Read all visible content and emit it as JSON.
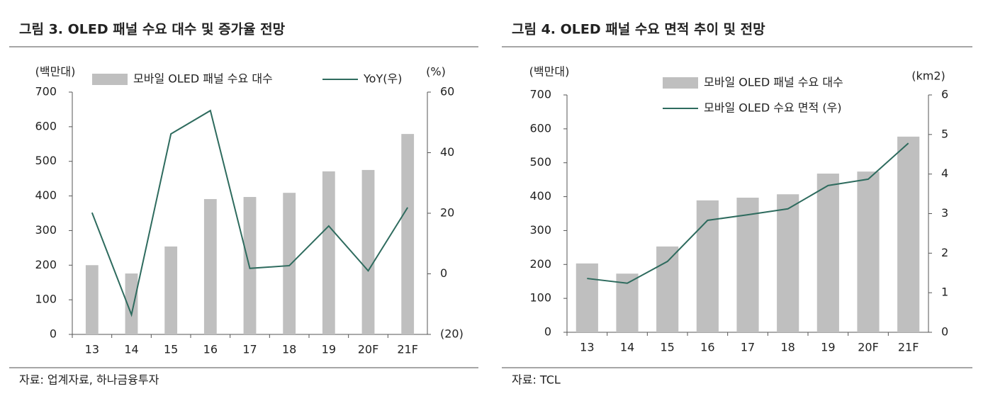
{
  "chart_data": [
    {
      "type": "bar-line",
      "title": "그림 3. OLED 패널 수요 대수 및 증가율 전망",
      "source": "자료: 업계자료, 하나금융투자",
      "y_unit": "(백만대)",
      "y2_unit": "(%)",
      "categories": [
        "13",
        "14",
        "15",
        "16",
        "17",
        "18",
        "19",
        "20F",
        "21F"
      ],
      "series": [
        {
          "name": "모바일 OLED 패널 수요 대수",
          "type": "bar",
          "color": "#bfbfbf",
          "values": [
            200,
            176,
            254,
            391,
            397,
            409,
            471,
            475,
            579
          ]
        },
        {
          "name": "YoY(우)",
          "type": "line",
          "axis": "y2",
          "color": "#2e6b5e",
          "values": [
            20.2,
            -13.5,
            46.2,
            53.9,
            1.8,
            2.7,
            15.8,
            1,
            21.9
          ]
        }
      ],
      "ylim": [
        0,
        700
      ],
      "yticks": [
        0,
        100,
        200,
        300,
        400,
        500,
        600,
        700
      ],
      "y2lim": [
        -20,
        60
      ],
      "y2ticks": [
        {
          "value": -20,
          "label": "(20)"
        },
        0,
        20,
        40,
        60
      ]
    },
    {
      "type": "bar-line",
      "title": "그림 4. OLED 패널 수요 면적 추이 및 전망",
      "source": "자료: TCL",
      "y_unit": "(백만대)",
      "y2_unit": "(km2)",
      "categories": [
        "13",
        "14",
        "15",
        "16",
        "17",
        "18",
        "19",
        "20F",
        "21F"
      ],
      "series": [
        {
          "name": "모바일 OLED 패널 수요 대수",
          "type": "bar",
          "color": "#bfbfbf",
          "values": [
            203,
            173,
            253,
            389,
            397,
            407,
            468,
            474,
            577
          ]
        },
        {
          "name": "모바일 OLED 수요 면적 (우)",
          "type": "line",
          "axis": "y2",
          "color": "#2e6b5e",
          "values": [
            1.36,
            1.24,
            1.79,
            2.83,
            2.97,
            3.12,
            3.71,
            3.87,
            4.78
          ]
        }
      ],
      "ylim": [
        0,
        700
      ],
      "yticks": [
        0,
        100,
        200,
        300,
        400,
        500,
        600,
        700
      ],
      "y2lim": [
        0,
        6
      ],
      "y2ticks": [
        0,
        1,
        2,
        3,
        4,
        5,
        6
      ]
    }
  ]
}
